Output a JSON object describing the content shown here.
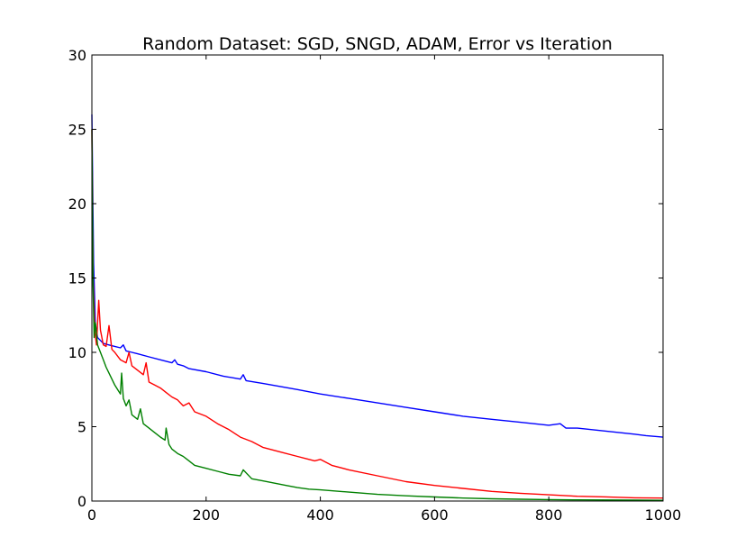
{
  "chart_data": {
    "type": "line",
    "title": "Random Dataset: SGD, SNGD, ADAM, Error vs Iteration",
    "xlabel": "",
    "ylabel": "",
    "xlim": [
      0,
      1000
    ],
    "ylim": [
      0,
      30
    ],
    "xticks": [
      0,
      200,
      400,
      600,
      800,
      1000
    ],
    "yticks": [
      0,
      5,
      10,
      15,
      20,
      25,
      30
    ],
    "grid": false,
    "legend": "none",
    "series": [
      {
        "color": "#0000ff",
        "x": [
          0,
          3,
          6,
          10,
          15,
          20,
          30,
          40,
          50,
          55,
          60,
          70,
          80,
          100,
          120,
          140,
          145,
          150,
          160,
          170,
          200,
          230,
          260,
          265,
          270,
          300,
          330,
          360,
          400,
          450,
          500,
          550,
          600,
          650,
          700,
          750,
          800,
          820,
          830,
          850,
          900,
          950,
          970,
          1000
        ],
        "y": [
          26,
          16,
          12,
          11,
          10.8,
          10.6,
          10.5,
          10.4,
          10.3,
          10.5,
          10.1,
          10.0,
          9.9,
          9.7,
          9.5,
          9.3,
          9.5,
          9.2,
          9.1,
          8.9,
          8.7,
          8.4,
          8.2,
          8.5,
          8.1,
          7.9,
          7.7,
          7.5,
          7.2,
          6.9,
          6.6,
          6.3,
          6.0,
          5.7,
          5.5,
          5.3,
          5.1,
          5.2,
          4.9,
          4.9,
          4.7,
          4.5,
          4.4,
          4.3
        ]
      },
      {
        "color": "#ff0000",
        "x": [
          0,
          2,
          5,
          8,
          12,
          15,
          20,
          25,
          30,
          35,
          40,
          50,
          60,
          65,
          70,
          80,
          90,
          95,
          100,
          110,
          120,
          130,
          140,
          150,
          160,
          170,
          180,
          200,
          220,
          240,
          260,
          280,
          300,
          330,
          360,
          390,
          400,
          420,
          450,
          500,
          550,
          600,
          650,
          700,
          750,
          800,
          850,
          900,
          950,
          1000
        ],
        "y": [
          25,
          15,
          11.5,
          10.5,
          13.5,
          11.5,
          10.5,
          10.4,
          11.8,
          10.2,
          10.0,
          9.5,
          9.3,
          10.0,
          9.1,
          8.8,
          8.5,
          9.3,
          8.0,
          7.8,
          7.6,
          7.3,
          7.0,
          6.8,
          6.4,
          6.6,
          6.0,
          5.7,
          5.2,
          4.8,
          4.3,
          4.0,
          3.6,
          3.3,
          3.0,
          2.7,
          2.8,
          2.4,
          2.1,
          1.7,
          1.3,
          1.05,
          0.85,
          0.65,
          0.52,
          0.42,
          0.32,
          0.28,
          0.22,
          0.2
        ]
      },
      {
        "color": "#008000",
        "x": [
          0,
          2,
          4,
          6,
          10,
          15,
          20,
          25,
          30,
          40,
          50,
          52,
          55,
          60,
          65,
          70,
          80,
          85,
          90,
          100,
          110,
          120,
          128,
          130,
          135,
          140,
          150,
          160,
          170,
          180,
          200,
          220,
          240,
          260,
          265,
          280,
          300,
          320,
          340,
          360,
          380,
          400,
          450,
          500,
          550,
          600,
          650,
          700,
          750,
          800,
          850,
          900,
          950,
          1000
        ],
        "y": [
          25,
          14.5,
          11,
          12,
          10.5,
          10.0,
          9.5,
          9.0,
          8.6,
          7.8,
          7.2,
          8.6,
          6.9,
          6.4,
          6.8,
          5.8,
          5.5,
          6.2,
          5.2,
          4.9,
          4.6,
          4.3,
          4.1,
          4.9,
          3.8,
          3.5,
          3.2,
          3.0,
          2.7,
          2.4,
          2.2,
          2.0,
          1.8,
          1.7,
          2.1,
          1.5,
          1.35,
          1.2,
          1.05,
          0.9,
          0.8,
          0.75,
          0.6,
          0.45,
          0.35,
          0.27,
          0.2,
          0.15,
          0.12,
          0.1,
          0.08,
          0.07,
          0.06,
          0.05
        ]
      }
    ]
  }
}
